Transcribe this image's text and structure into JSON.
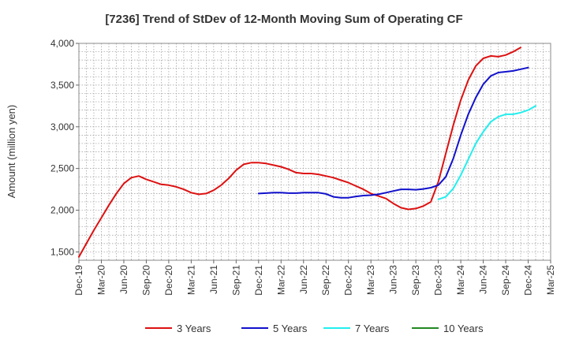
{
  "chart_data": {
    "type": "line",
    "title": "[7236]  Trend of StDev of 12-Month Moving Sum of Operating CF",
    "xlabel": "",
    "ylabel": "Amount (million yen)",
    "ylim": [
      1400,
      4000
    ],
    "yticks": [
      1500,
      2000,
      2500,
      3000,
      3500,
      4000
    ],
    "ytick_labels": [
      "1,500",
      "2,000",
      "2,500",
      "3,000",
      "3,500",
      "4,000"
    ],
    "xticks": [
      "Dec-19",
      "Mar-20",
      "Jun-20",
      "Sep-20",
      "Dec-20",
      "Mar-21",
      "Jun-21",
      "Sep-21",
      "Dec-21",
      "Mar-22",
      "Jun-22",
      "Sep-22",
      "Dec-22",
      "Mar-23",
      "Jun-23",
      "Sep-23",
      "Dec-23",
      "Mar-24",
      "Jun-24",
      "Sep-24",
      "Dec-24",
      "Mar-25"
    ],
    "x_start": "Dec-19",
    "grid": true,
    "legend_position": "bottom",
    "series": [
      {
        "name": "3 Years",
        "color": "#dd1111",
        "start_month_index": 0,
        "values": [
          1440,
          1600,
          1760,
          1910,
          2060,
          2200,
          2320,
          2390,
          2410,
          2370,
          2340,
          2310,
          2300,
          2280,
          2250,
          2210,
          2190,
          2200,
          2240,
          2300,
          2380,
          2480,
          2550,
          2570,
          2570,
          2560,
          2540,
          2520,
          2490,
          2450,
          2440,
          2440,
          2430,
          2410,
          2390,
          2360,
          2330,
          2290,
          2250,
          2200,
          2170,
          2140,
          2080,
          2030,
          2010,
          2020,
          2050,
          2100,
          2340,
          2680,
          3020,
          3320,
          3560,
          3730,
          3820,
          3850,
          3840,
          3860,
          3900,
          3950
        ]
      },
      {
        "name": "5 Years",
        "color": "#1111cc",
        "start_month_index": 24,
        "values": [
          2200,
          2205,
          2210,
          2210,
          2205,
          2205,
          2210,
          2210,
          2210,
          2195,
          2160,
          2150,
          2150,
          2165,
          2175,
          2180,
          2190,
          2210,
          2230,
          2250,
          2250,
          2245,
          2255,
          2270,
          2300,
          2400,
          2620,
          2900,
          3150,
          3350,
          3510,
          3610,
          3650,
          3660,
          3670,
          3690,
          3710
        ]
      },
      {
        "name": "7 Years",
        "color": "#22eeee",
        "start_month_index": 48,
        "values": [
          2130,
          2160,
          2260,
          2420,
          2610,
          2800,
          2940,
          3060,
          3120,
          3150,
          3150,
          3170,
          3200,
          3250
        ]
      },
      {
        "name": "10 Years",
        "color": "#228822",
        "start_month_index": 0,
        "values": []
      }
    ]
  }
}
